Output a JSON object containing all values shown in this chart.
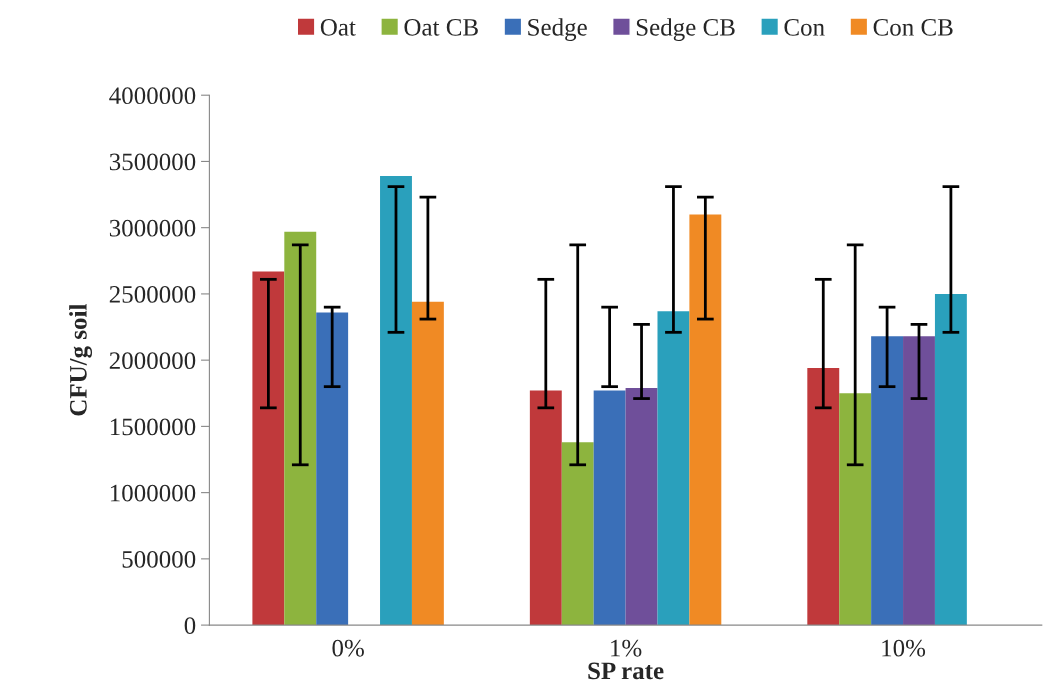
{
  "chart_data": {
    "type": "bar",
    "xlabel": "SP rate",
    "ylabel": "CFU/g soil",
    "categories": [
      "0%",
      "1%",
      "10%"
    ],
    "series": [
      {
        "name": "Oat",
        "color": "#c0393b",
        "values": [
          2670000,
          1770000,
          1940000
        ],
        "errors": [
          [
            1640000,
            2610000
          ],
          [
            1640000,
            2610000
          ],
          [
            1640000,
            2610000
          ]
        ]
      },
      {
        "name": "Oat CB",
        "color": "#8db43e",
        "values": [
          2970000,
          1380000,
          1750000
        ],
        "errors": [
          [
            1210000,
            2870000
          ],
          [
            1210000,
            2870000
          ],
          [
            1210000,
            2870000
          ]
        ]
      },
      {
        "name": "Sedge",
        "color": "#3a6fb8",
        "values": [
          2360000,
          1770000,
          2180000
        ],
        "errors": [
          [
            1800000,
            2400000
          ],
          [
            1800000,
            2400000
          ],
          [
            1800000,
            2400000
          ]
        ]
      },
      {
        "name": "Sedge CB",
        "color": "#6f4f9a",
        "values": [
          null,
          1790000,
          2180000
        ],
        "errors": [
          null,
          [
            1710000,
            2270000
          ],
          [
            1710000,
            2270000
          ]
        ]
      },
      {
        "name": "Con",
        "color": "#2aa0bc",
        "values": [
          3390000,
          2370000,
          2500000
        ],
        "errors": [
          [
            2210000,
            3310000
          ],
          [
            2210000,
            3310000
          ],
          [
            2210000,
            3310000
          ]
        ]
      },
      {
        "name": "Con CB",
        "color": "#f08a24",
        "values": [
          2440000,
          3100000,
          null
        ],
        "errors": [
          [
            2310000,
            3230000
          ],
          [
            2310000,
            3230000
          ],
          null
        ]
      }
    ],
    "ylim": [
      0,
      4000000
    ],
    "yticks": [
      0,
      500000,
      1000000,
      1500000,
      2000000,
      2500000,
      3000000,
      3500000,
      4000000
    ],
    "legend": "top",
    "grid": false
  }
}
